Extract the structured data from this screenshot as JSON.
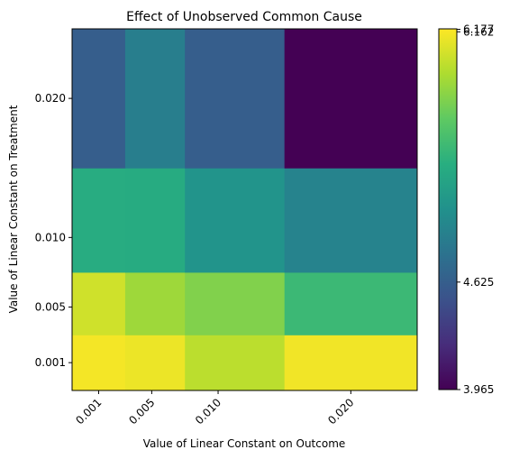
{
  "chart_data": {
    "type": "heatmap",
    "title": "Effect of Unobserved Common Cause",
    "xlabel": "Value of Linear Constant on Outcome",
    "ylabel": "Value of Linear Constant on Treatment",
    "x": [
      0.001,
      0.005,
      0.01,
      0.02
    ],
    "y": [
      0.001,
      0.005,
      0.01,
      0.02
    ],
    "x_tick_labels": [
      "0.001",
      "0.005",
      "0.010",
      "0.020"
    ],
    "y_tick_labels": [
      "0.001",
      "0.005",
      "0.010",
      "0.020"
    ],
    "values": [
      [
        6.15,
        6.12,
        5.95,
        6.14
      ],
      [
        6.02,
        5.85,
        5.75,
        5.45
      ],
      [
        5.33,
        5.32,
        5.1,
        4.95
      ],
      [
        4.62,
        4.9,
        4.62,
        3.965
      ]
    ],
    "colorbar_ticks": [
      {
        "value": 3.965,
        "label": "3.965"
      },
      {
        "value": 4.625,
        "label": "4.625"
      },
      {
        "value": 6.162,
        "label": "6.162"
      },
      {
        "value": 6.177,
        "label": "6.177"
      }
    ],
    "color_range": [
      3.965,
      6.18
    ],
    "colormap": "viridis",
    "grid": false
  }
}
